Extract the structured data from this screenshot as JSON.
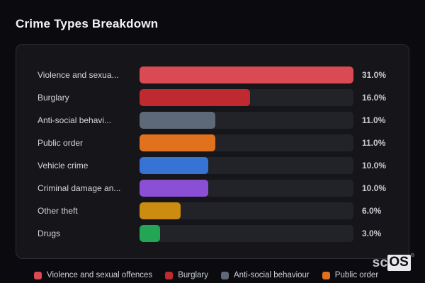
{
  "page": {
    "title": "Crime Types Breakdown"
  },
  "chart_data": {
    "type": "bar",
    "orientation": "horizontal",
    "title": "Crime Types Breakdown",
    "categories": [
      "Violence and sexua...",
      "Burglary",
      "Anti-social behavi...",
      "Public order",
      "Vehicle crime",
      "Criminal damage an...",
      "Other theft",
      "Drugs"
    ],
    "values": [
      31.0,
      16.0,
      11.0,
      11.0,
      10.0,
      10.0,
      6.0,
      3.0
    ],
    "value_labels": [
      "31.0%",
      "16.0%",
      "11.0%",
      "11.0%",
      "10.0%",
      "10.0%",
      "6.0%",
      "3.0%"
    ],
    "bar_colors": [
      "#d94a52",
      "#bf2a30",
      "#5d6878",
      "#e0711d",
      "#3673d4",
      "#8b4fd6",
      "#cc8c12",
      "#23a556"
    ],
    "max_value": 31,
    "xlim": [
      0,
      31
    ],
    "grid": false,
    "legend_position": "bottom"
  },
  "legend": {
    "items": [
      {
        "label": "Violence and sexual offences",
        "color": "#d94a52"
      },
      {
        "label": "Burglary",
        "color": "#bf2a30"
      },
      {
        "label": "Anti-social behaviour",
        "color": "#5d6878"
      },
      {
        "label": "Public order",
        "color": "#e0711d"
      }
    ]
  },
  "brand": {
    "prefix": "sc",
    "suffix": "OS",
    "registered": "®"
  },
  "colors": {
    "page_background": "#0b0b0f",
    "card_background": "#16161a",
    "card_border": "#2c2d34",
    "track_background": "#222229",
    "label_text": "#d4d6da",
    "value_text": "#c6c9ce",
    "title_text": "#f2f3f5"
  }
}
